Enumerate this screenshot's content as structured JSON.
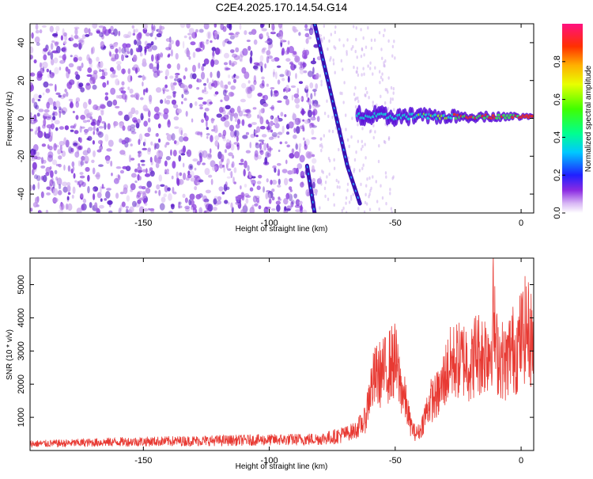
{
  "chart_data": [
    {
      "type": "heatmap",
      "title": "C2E4.2025.170.14.54.G14",
      "xlabel": "Height of straight line (km)",
      "ylabel": "Frequency (Hz)",
      "xlim": [
        -195,
        5
      ],
      "ylim": [
        -50,
        50
      ],
      "xticks": [
        -150,
        -100,
        -50,
        0
      ],
      "yticks": [
        40,
        20,
        0,
        -20,
        -40
      ],
      "colorbar": {
        "label": "Normalized spectral amplitude",
        "range": [
          0,
          1
        ],
        "ticks": [
          0.0,
          0.2,
          0.4,
          0.6,
          0.8
        ]
      },
      "features": {
        "noise_region_km": [
          -195,
          -80
        ],
        "steep_track": [
          [
            -82,
            50
          ],
          [
            -75,
            10
          ],
          [
            -69,
            -25
          ],
          [
            -64,
            -45
          ]
        ],
        "left_track": [
          [
            -85,
            -25
          ],
          [
            -82,
            -50
          ]
        ],
        "stable_signal_freq_hz": 1,
        "stable_signal_start_km": -65
      },
      "grid": false,
      "colorbar_placement": "right"
    },
    {
      "type": "line",
      "title": "",
      "xlabel": "Height of straight line (km)",
      "ylabel": "SNR (10 * v/v)",
      "xlim": [
        -195,
        5
      ],
      "ylim": [
        0,
        5800
      ],
      "xticks": [
        -150,
        -100,
        -50,
        0
      ],
      "yticks": [
        1000,
        2000,
        3000,
        4000,
        5000
      ],
      "series": [
        {
          "color": "#e83a33",
          "x": [
            -195,
            -180,
            -160,
            -140,
            -120,
            -100,
            -90,
            -80,
            -75,
            -70,
            -66,
            -62,
            -60,
            -58,
            -56,
            -54,
            -52,
            -50,
            -48,
            -46,
            -44,
            -42,
            -40,
            -38,
            -36,
            -34,
            -32,
            -30,
            -28,
            -26,
            -24,
            -22,
            -20,
            -18,
            -16,
            -14,
            -12,
            -11,
            -10,
            -8,
            -6,
            -4,
            -2,
            0,
            2,
            5
          ],
          "y": [
            200,
            220,
            260,
            280,
            300,
            320,
            330,
            350,
            400,
            500,
            600,
            900,
            1800,
            2200,
            2300,
            2400,
            2600,
            2700,
            2000,
            1500,
            800,
            500,
            600,
            1100,
            1500,
            1600,
            1800,
            2300,
            2600,
            2700,
            2700,
            2800,
            2500,
            3000,
            2900,
            3000,
            3100,
            4200,
            3000,
            2800,
            2600,
            3100,
            3000,
            3400,
            3700,
            3200
          ]
        }
      ],
      "grid": false
    }
  ]
}
